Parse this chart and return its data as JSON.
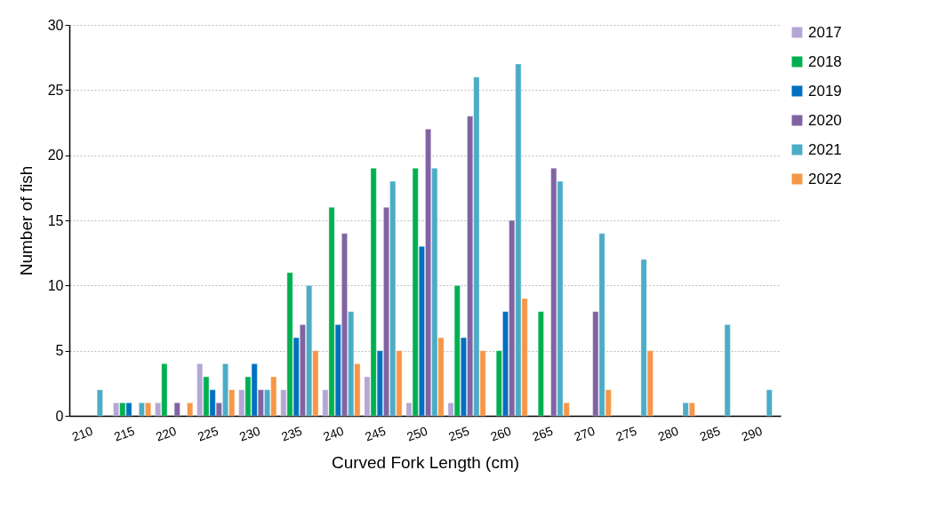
{
  "chart_data": {
    "type": "bar",
    "xlabel": "Curved Fork Length (cm)",
    "ylabel": "Number of fish",
    "categories": [
      "210",
      "215",
      "220",
      "225",
      "230",
      "235",
      "240",
      "245",
      "250",
      "255",
      "260",
      "265",
      "270",
      "275",
      "280",
      "285",
      "290"
    ],
    "series": [
      {
        "name": "2017",
        "color": "#b4a7d6",
        "values": [
          null,
          1,
          1,
          4,
          2,
          2,
          2,
          3,
          1,
          1,
          null,
          null,
          null,
          null,
          null,
          null,
          null
        ]
      },
      {
        "name": "2018",
        "color": "#00b050",
        "values": [
          null,
          1,
          4,
          3,
          3,
          11,
          16,
          19,
          19,
          10,
          5,
          8,
          null,
          null,
          null,
          null,
          null
        ]
      },
      {
        "name": "2019",
        "color": "#0070c0",
        "values": [
          null,
          1,
          null,
          2,
          4,
          6,
          7,
          5,
          13,
          6,
          8,
          null,
          null,
          null,
          null,
          null,
          null
        ]
      },
      {
        "name": "2020",
        "color": "#8064a2",
        "values": [
          null,
          null,
          1,
          1,
          2,
          7,
          14,
          16,
          22,
          23,
          15,
          19,
          8,
          null,
          null,
          null,
          null
        ]
      },
      {
        "name": "2021",
        "color": "#4bacc6",
        "values": [
          2,
          1,
          null,
          4,
          2,
          10,
          8,
          18,
          19,
          26,
          27,
          18,
          14,
          12,
          1,
          7,
          2
        ]
      },
      {
        "name": "2022",
        "color": "#f79646",
        "values": [
          null,
          1,
          1,
          2,
          3,
          5,
          4,
          5,
          6,
          5,
          9,
          1,
          2,
          5,
          1,
          null,
          null
        ]
      }
    ],
    "ylim": [
      0,
      30
    ],
    "yticks": [
      0,
      5,
      10,
      15,
      20,
      25,
      30
    ],
    "grid": "y",
    "legend": "right"
  }
}
